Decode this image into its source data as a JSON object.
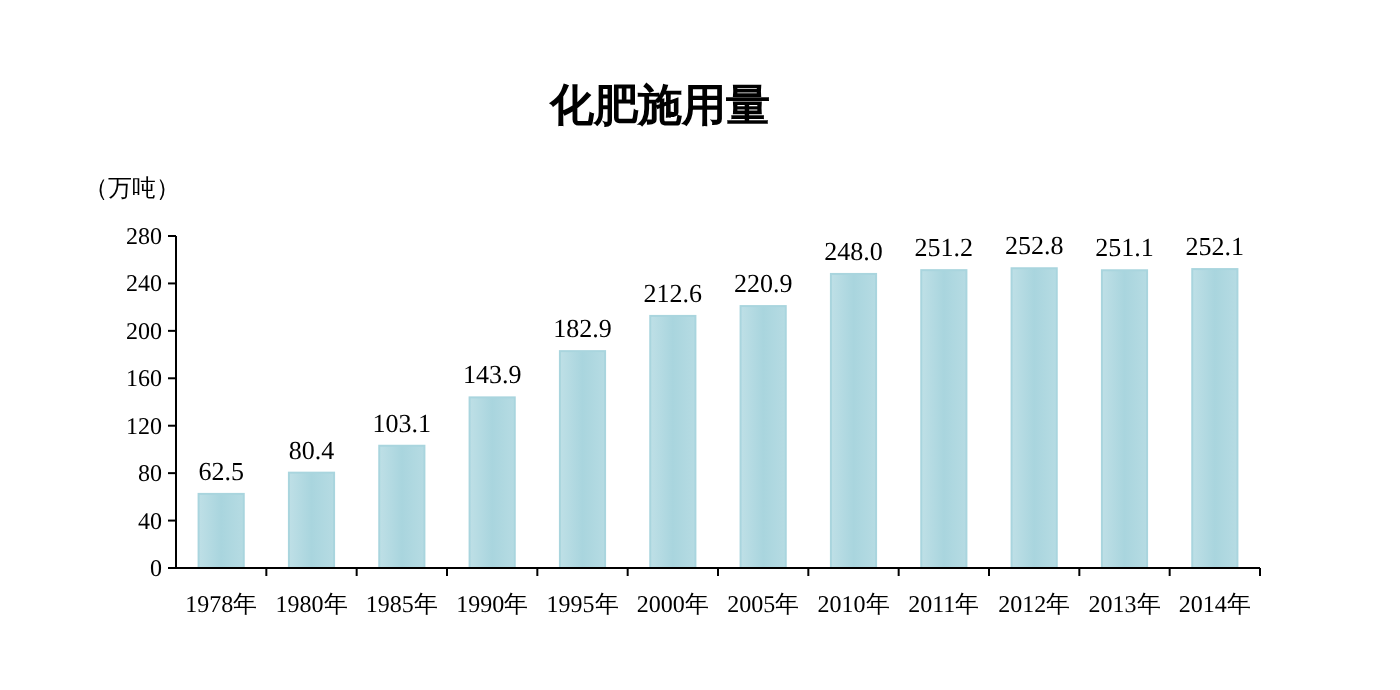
{
  "chart_data": {
    "type": "bar",
    "title": "化肥施用量",
    "ylabel": "（万吨）",
    "categories": [
      "1978年",
      "1980年",
      "1985年",
      "1990年",
      "1995年",
      "2000年",
      "2005年",
      "2010年",
      "2011年",
      "2012年",
      "2013年",
      "2014年"
    ],
    "values": [
      62.5,
      80.4,
      103.1,
      143.9,
      182.9,
      212.6,
      220.9,
      248.0,
      251.2,
      252.8,
      251.1,
      252.1
    ],
    "value_labels": [
      "62.5",
      "80.4",
      "103.1",
      "143.9",
      "182.9",
      "212.6",
      "220.9",
      "248.0",
      "251.2",
      "252.8",
      "251.1",
      "252.1"
    ],
    "color": "#a9d5de",
    "ylim": [
      0,
      280
    ],
    "yticks": [
      0,
      40,
      80,
      120,
      160,
      200,
      240,
      280
    ],
    "grid": false
  }
}
